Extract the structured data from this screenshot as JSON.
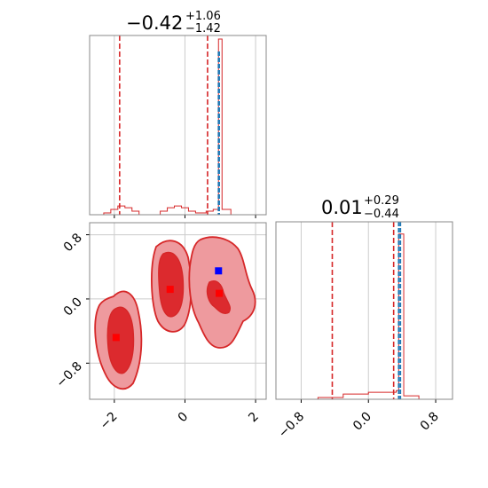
{
  "chart_data": [
    {
      "panel": "marginal-1",
      "type": "histogram",
      "title": {
        "value": "−0.42",
        "plus": "+1.06",
        "minus": "−1.42"
      },
      "x_range": [
        -2.7,
        2.3
      ],
      "x_ticks": [
        -2,
        0,
        2
      ],
      "x_tick_labels": [
        "−2",
        "0",
        "2"
      ],
      "grid": true,
      "quantile_lines": [
        -1.85,
        0.64
      ],
      "truth_lines": [
        0.95,
        0.97
      ],
      "histogram": {
        "x": [
          -2.7,
          -2.3,
          -2.1,
          -1.9,
          -1.7,
          -1.5,
          -1.3,
          -0.9,
          -0.7,
          -0.5,
          -0.3,
          -0.1,
          0.1,
          0.3,
          0.6,
          0.8,
          0.95,
          1.05,
          1.3,
          2.3
        ],
        "y": [
          0,
          0.01,
          0.03,
          0.05,
          0.04,
          0.02,
          0,
          0,
          0.02,
          0.04,
          0.05,
          0.04,
          0.02,
          0.01,
          0.02,
          0.03,
          1.0,
          0.03,
          0,
          0
        ]
      }
    },
    {
      "panel": "marginal-2",
      "type": "histogram",
      "title": {
        "value": "0.01",
        "plus": "+0.29",
        "minus": "−0.44"
      },
      "x_range": [
        -1.1,
        1.0
      ],
      "x_ticks": [
        -0.8,
        0.0,
        0.8
      ],
      "x_tick_labels": [
        "−0.8",
        "0.0",
        "0.8"
      ],
      "grid": true,
      "quantile_lines": [
        -0.43,
        0.3
      ],
      "truth_lines": [
        0.36,
        0.38
      ],
      "histogram": {
        "x": [
          -0.95,
          -0.6,
          -0.3,
          0.0,
          0.25,
          0.33,
          0.36,
          0.38,
          0.42,
          0.6
        ],
        "y": [
          0,
          0.01,
          0.03,
          0.04,
          0.04,
          0.05,
          0.95,
          0.95,
          0.02,
          0
        ]
      }
    },
    {
      "panel": "joint",
      "type": "contour",
      "x_range": [
        -2.7,
        2.3
      ],
      "y_range": [
        -1.25,
        0.95
      ],
      "x_ticks": [
        -2,
        0,
        2
      ],
      "x_tick_labels": [
        "−2",
        "0",
        "2"
      ],
      "y_ticks": [
        -0.8,
        0.0,
        0.8
      ],
      "y_tick_labels": [
        "−0.8",
        "0.0",
        "0.8"
      ],
      "grid": true,
      "truth_point": {
        "x": 0.95,
        "y": 0.35,
        "color": "#0000ff"
      },
      "modes": [
        {
          "x": -1.95,
          "y": -0.48
        },
        {
          "x": -0.42,
          "y": 0.12
        },
        {
          "x": 0.97,
          "y": 0.07
        }
      ],
      "contour_colors": {
        "outer": "#ee9a9e",
        "inner": "#dc2a2e",
        "edge": "#d62728"
      }
    }
  ],
  "colors": {
    "accent": "#d62728",
    "truth": "#1f77b4",
    "grid": "#cccccc"
  }
}
